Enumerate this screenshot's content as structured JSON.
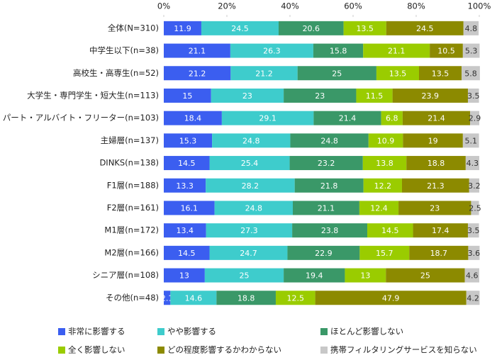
{
  "chart_data": {
    "type": "stacked-bar-horizontal",
    "categories": [
      "全体(N=310)",
      "中学生以下(n=38)",
      "高校生・高専生(n=52)",
      "大学生・専門学生・短大生(n=113)",
      "パート・アルバイト・フリーター(n=103)",
      "主婦層(n=137)",
      "DINKS(n=138)",
      "F1層(n=188)",
      "F2層(n=161)",
      "M1層(n=172)",
      "M2層(n=166)",
      "シニア層(n=108)",
      "その他(n=48)"
    ],
    "series": [
      {
        "name": "非常に影響する",
        "color": "#3b5ef0",
        "values": [
          11.9,
          21.1,
          21.2,
          15.0,
          18.4,
          15.3,
          14.5,
          13.3,
          16.1,
          13.4,
          14.5,
          13.0,
          2.1
        ]
      },
      {
        "name": "やや影響する",
        "color": "#3ecccc",
        "values": [
          24.5,
          26.3,
          21.2,
          23.0,
          29.1,
          24.8,
          25.4,
          28.2,
          24.8,
          27.3,
          24.7,
          25.0,
          14.6
        ]
      },
      {
        "name": "ほとんど影響しない",
        "color": "#3a9868",
        "values": [
          20.6,
          15.8,
          25.0,
          23.0,
          21.4,
          24.8,
          23.2,
          21.8,
          21.1,
          23.8,
          22.9,
          19.4,
          18.8
        ]
      },
      {
        "name": "全く影響しない",
        "color": "#9acc00",
        "values": [
          13.5,
          21.1,
          13.5,
          11.5,
          6.8,
          10.9,
          13.8,
          12.2,
          12.4,
          14.5,
          15.7,
          13.0,
          12.5
        ]
      },
      {
        "name": "どの程度影響するかわからない",
        "color": "#8c8a00",
        "values": [
          24.5,
          10.5,
          13.5,
          23.9,
          21.4,
          19.0,
          18.8,
          21.3,
          23.0,
          17.4,
          18.7,
          25.0,
          47.9
        ]
      },
      {
        "name": "携帯フィルタリングサービスを知らない",
        "color": "#c8c8c8",
        "values": [
          4.8,
          5.3,
          5.8,
          3.5,
          2.9,
          5.1,
          4.3,
          3.2,
          2.5,
          3.5,
          3.6,
          4.6,
          4.2
        ]
      }
    ],
    "xlim": [
      0,
      100
    ],
    "xticks": [
      {
        "value": 0,
        "label": "0%"
      },
      {
        "value": 20,
        "label": "20%"
      },
      {
        "value": 40,
        "label": "40%"
      },
      {
        "value": 60,
        "label": "60%"
      },
      {
        "value": 80,
        "label": "80%"
      },
      {
        "value": 100,
        "label": "100%"
      }
    ],
    "grid": false
  }
}
